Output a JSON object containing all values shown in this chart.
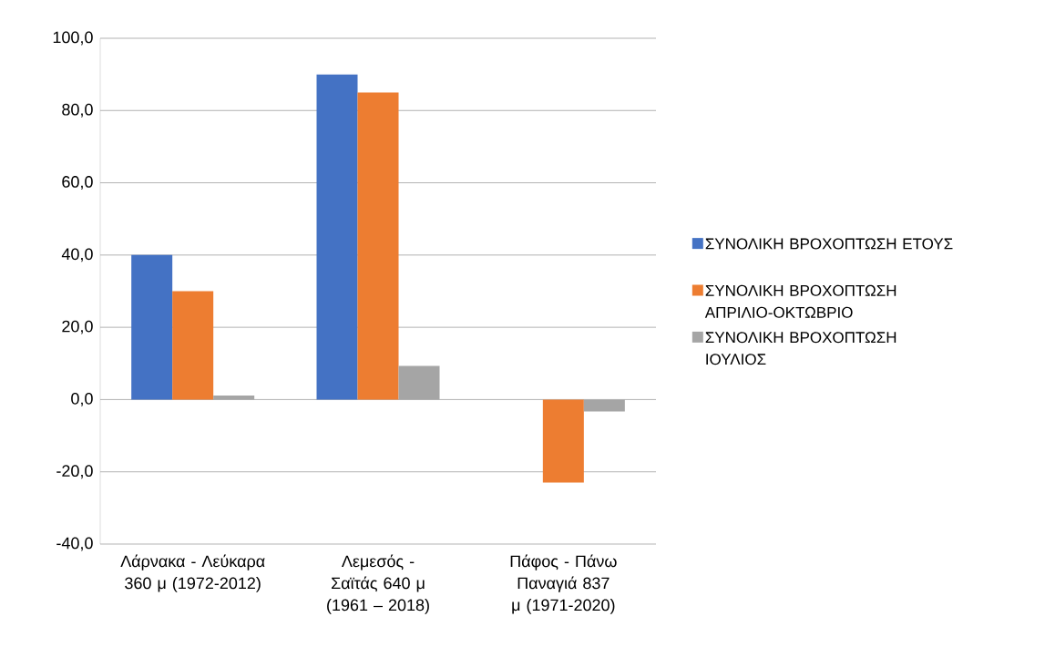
{
  "chart_data": {
    "type": "bar",
    "categories": [
      "Λάρνακα - Λεύκαρα 360 μ (1972-2012)",
      "Λεμεσός - Σαϊτάς 640 μ (1961 – 2018)",
      "Πάφος - Πάνω Παναγιά 837 μ (1971-2020)"
    ],
    "series": [
      {
        "name": "ΣΥΝΟΛΙΚΗ ΒΡΟΧΟΠΤΩΣΗ ΕΤΟΥΣ",
        "color": "#4472c4",
        "values": [
          40,
          90,
          0
        ]
      },
      {
        "name": "ΣΥΝΟΛΙΚΗ ΒΡΟΧΟΠΤΩΣΗ ΑΠΡΙΛΙΟ-ΟΚΤΩΒΡΙΟ",
        "color": "#ed7d31",
        "values": [
          30,
          85,
          -23
        ]
      },
      {
        "name": "ΣΥΝΟΛΙΚΗ ΒΡΟΧΟΠΤΩΣΗ ΙΟΥΛΙΟΣ",
        "color": "#a5a5a5",
        "values": [
          1.1,
          9.3,
          -3.3
        ]
      }
    ],
    "ylim": [
      -40,
      100
    ],
    "yticks": [
      {
        "value": -40,
        "label": "-40,0"
      },
      {
        "value": -20,
        "label": "-20,0"
      },
      {
        "value": 0,
        "label": "0,0"
      },
      {
        "value": 20,
        "label": "20,0"
      },
      {
        "value": 40,
        "label": "40,0"
      },
      {
        "value": 60,
        "label": "60,0"
      },
      {
        "value": 80,
        "label": "80,0"
      },
      {
        "value": 100,
        "label": "100,0"
      }
    ],
    "grid": "y",
    "legend": "right"
  }
}
